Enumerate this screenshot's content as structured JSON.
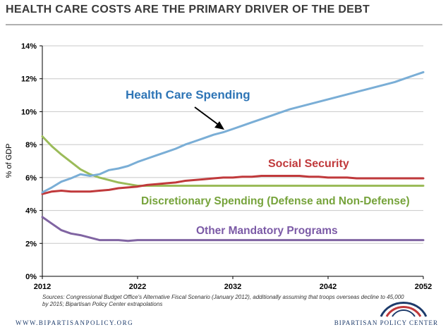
{
  "header": {
    "title": "HEALTH CARE COSTS ARE THE PRIMARY DRIVER OF THE DEBT"
  },
  "chart_data": {
    "type": "line",
    "ylabel": "% of GDP",
    "xlabel": "",
    "xlim": [
      2012,
      2052
    ],
    "ylim": [
      0,
      14
    ],
    "x_ticks": [
      "2012",
      "2022",
      "2032",
      "2042",
      "2052"
    ],
    "y_ticks": [
      "0%",
      "2%",
      "4%",
      "6%",
      "8%",
      "10%",
      "12%",
      "14%"
    ],
    "grid": "horizontal",
    "x": [
      2012,
      2013,
      2014,
      2015,
      2016,
      2017,
      2018,
      2019,
      2020,
      2021,
      2022,
      2023,
      2024,
      2025,
      2026,
      2027,
      2028,
      2029,
      2030,
      2031,
      2032,
      2033,
      2034,
      2035,
      2036,
      2037,
      2038,
      2039,
      2040,
      2041,
      2042,
      2043,
      2044,
      2045,
      2046,
      2047,
      2048,
      2049,
      2050,
      2051,
      2052
    ],
    "series": [
      {
        "name": "Health Care Spending",
        "color": "#7aaed6",
        "values": [
          5.1,
          5.4,
          5.75,
          5.95,
          6.2,
          6.1,
          6.2,
          6.45,
          6.55,
          6.7,
          6.95,
          7.15,
          7.35,
          7.55,
          7.75,
          8.0,
          8.2,
          8.4,
          8.6,
          8.75,
          8.95,
          9.15,
          9.35,
          9.55,
          9.75,
          9.95,
          10.15,
          10.3,
          10.45,
          10.6,
          10.75,
          10.9,
          11.05,
          11.2,
          11.35,
          11.5,
          11.65,
          11.8,
          12.0,
          12.2,
          12.4
        ]
      },
      {
        "name": "Social Security",
        "color": "#c0393b",
        "values": [
          5.0,
          5.15,
          5.2,
          5.15,
          5.15,
          5.15,
          5.2,
          5.25,
          5.35,
          5.4,
          5.45,
          5.55,
          5.6,
          5.65,
          5.7,
          5.8,
          5.85,
          5.9,
          5.95,
          6.0,
          6.0,
          6.05,
          6.05,
          6.1,
          6.1,
          6.1,
          6.1,
          6.1,
          6.05,
          6.05,
          6.0,
          6.0,
          6.0,
          5.95,
          5.95,
          5.95,
          5.95,
          5.95,
          5.95,
          5.95,
          5.95
        ]
      },
      {
        "name": "Discretionary Spending (Defense and Non-Defense)",
        "color": "#9bbb59",
        "values": [
          8.5,
          7.9,
          7.4,
          6.95,
          6.5,
          6.2,
          6.0,
          5.85,
          5.7,
          5.6,
          5.5,
          5.5,
          5.5,
          5.5,
          5.5,
          5.5,
          5.5,
          5.5,
          5.5,
          5.5,
          5.5,
          5.5,
          5.5,
          5.5,
          5.5,
          5.5,
          5.5,
          5.5,
          5.5,
          5.5,
          5.5,
          5.5,
          5.5,
          5.5,
          5.5,
          5.5,
          5.5,
          5.5,
          5.5,
          5.5,
          5.5
        ]
      },
      {
        "name": "Other Mandatory Programs",
        "color": "#8064a2",
        "values": [
          3.6,
          3.2,
          2.8,
          2.6,
          2.5,
          2.35,
          2.2,
          2.2,
          2.2,
          2.15,
          2.2,
          2.2,
          2.2,
          2.2,
          2.2,
          2.2,
          2.2,
          2.2,
          2.2,
          2.2,
          2.2,
          2.2,
          2.2,
          2.2,
          2.2,
          2.2,
          2.2,
          2.2,
          2.2,
          2.2,
          2.2,
          2.2,
          2.2,
          2.2,
          2.2,
          2.2,
          2.2,
          2.2,
          2.2,
          2.2,
          2.2
        ]
      }
    ]
  },
  "sources": "Sources: Congressional Budget Office's Alternative Fiscal Scenario (January 2012), additionally assuming that troops overseas decline to 45,000 by 2015; Bipartisan Policy Center extrapolations",
  "footer": {
    "url": "WWW.BIPARTISANPOLICY.ORG",
    "org": "BIPARTISAN POLICY CENTER"
  },
  "colors": {
    "title": "#3a3a3a",
    "axis": "#000000",
    "grid": "#c8c8c8",
    "brand_blue": "#1d3b6b",
    "brand_red": "#c0393b"
  }
}
